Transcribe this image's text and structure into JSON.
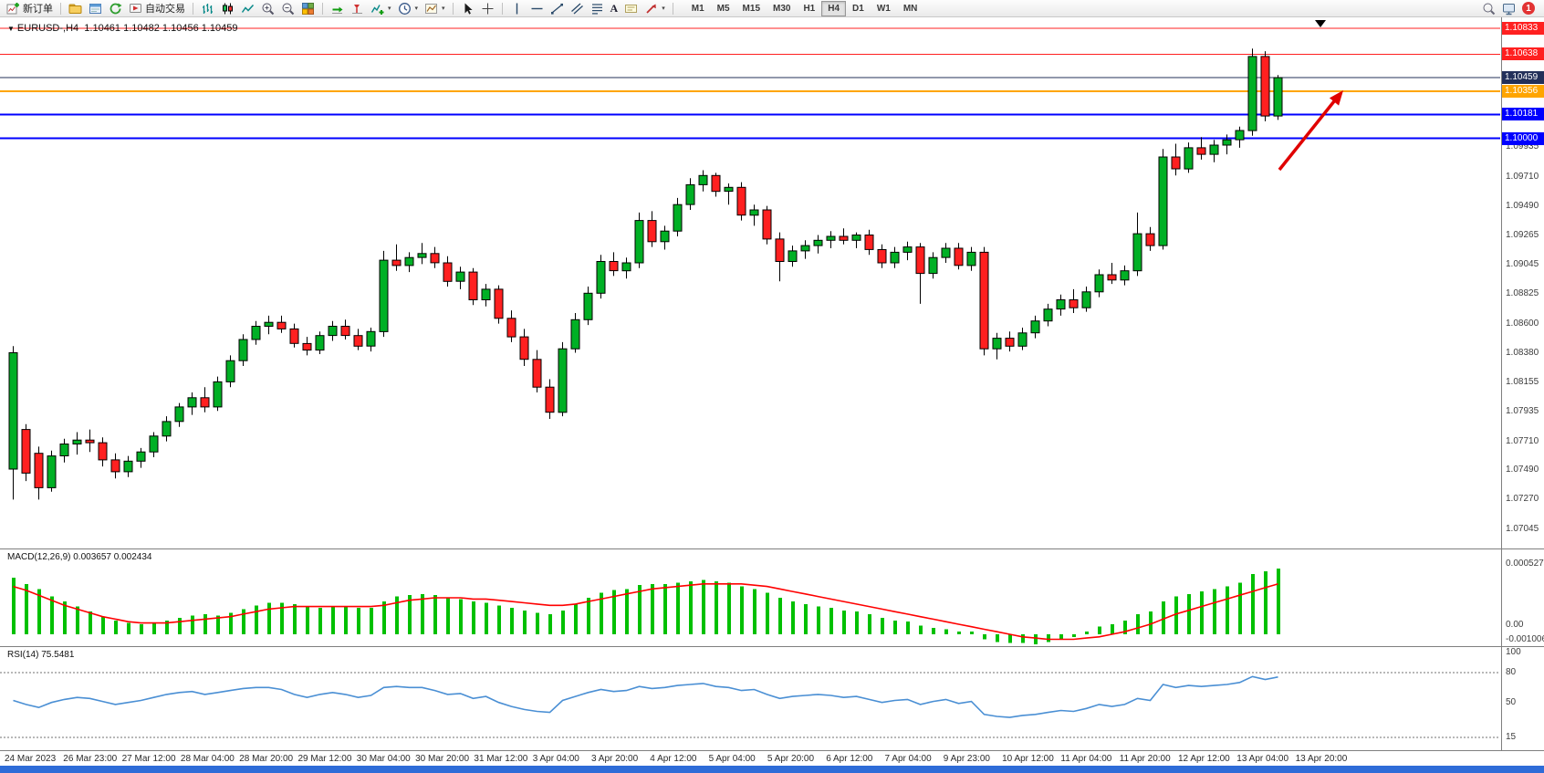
{
  "toolbar": {
    "new_order_label": "新订单",
    "autotrading_label": "自动交易",
    "text_tool_glyph": "A",
    "timeframes": [
      "M1",
      "M5",
      "M15",
      "M30",
      "H1",
      "H4",
      "D1",
      "W1",
      "MN"
    ],
    "active_timeframe": "H4",
    "notification_count": "1"
  },
  "chart_data": {
    "type": "candlestick",
    "symbol": "EURUSD-",
    "period": "H4",
    "title_display": "EURUSD-,H4",
    "ohlc_display": "1.10461 1.10482 1.10456 1.10459",
    "colors": {
      "bull": "#00B025",
      "bear": "#FF2020",
      "outline": "#000000",
      "background": "#FFFFFF",
      "macd_histogram": "#00C000",
      "macd_signal": "#FF0000",
      "rsi_line": "#4A8FD4",
      "axis_text": "#3C3C3C"
    },
    "y_axis_ticks": [
      "1.09935",
      "1.09710",
      "1.09490",
      "1.09265",
      "1.09045",
      "1.08825",
      "1.08600",
      "1.08380",
      "1.08155",
      "1.07935",
      "1.07710",
      "1.07490",
      "1.07270",
      "1.07045"
    ],
    "levels": [
      {
        "price": 1.10833,
        "label": "1.10833",
        "color": "#FF2020",
        "width": 1
      },
      {
        "price": 1.10638,
        "label": "1.10638",
        "color": "#FF2020",
        "width": 1
      },
      {
        "price": 1.10459,
        "label": "1.10459",
        "color": "#23305A",
        "width": 1,
        "current_price": true
      },
      {
        "price": 1.10356,
        "label": "1.10356",
        "color": "#FFA500",
        "width": 2
      },
      {
        "price": 1.10181,
        "label": "1.10181",
        "color": "#0000FF",
        "width": 2
      },
      {
        "price": 1.1,
        "label": "1.10000",
        "color": "#0000FF",
        "width": 2
      }
    ],
    "x_labels": [
      "24 Mar 2023",
      "26 Mar 23:00",
      "27 Mar 12:00",
      "28 Mar 04:00",
      "28 Mar 20:00",
      "29 Mar 12:00",
      "30 Mar 04:00",
      "30 Mar 20:00",
      "31 Mar 12:00",
      "3 Apr 04:00",
      "3 Apr 20:00",
      "4 Apr 12:00",
      "5 Apr 04:00",
      "5 Apr 20:00",
      "6 Apr 12:00",
      "7 Apr 04:00",
      "9 Apr 23:00",
      "10 Apr 12:00",
      "11 Apr 04:00",
      "11 Apr 20:00",
      "12 Apr 12:00",
      "13 Apr 04:00",
      "13 Apr 20:00"
    ],
    "candles": [
      [
        1.075,
        1.0843,
        1.0727,
        1.0838
      ],
      [
        1.078,
        1.0784,
        1.0741,
        1.0747
      ],
      [
        1.0762,
        1.0767,
        1.0727,
        1.0736
      ],
      [
        1.0736,
        1.0764,
        1.0733,
        1.076
      ],
      [
        1.076,
        1.0773,
        1.0755,
        1.0769
      ],
      [
        1.0769,
        1.0778,
        1.0761,
        1.0772
      ],
      [
        1.0772,
        1.078,
        1.0763,
        1.077
      ],
      [
        1.077,
        1.0774,
        1.0752,
        1.0757
      ],
      [
        1.0757,
        1.0762,
        1.0743,
        1.0748
      ],
      [
        1.0748,
        1.076,
        1.0744,
        1.0756
      ],
      [
        1.0756,
        1.0766,
        1.0751,
        1.0763
      ],
      [
        1.0763,
        1.0778,
        1.0759,
        1.0775
      ],
      [
        1.0775,
        1.079,
        1.0771,
        1.0786
      ],
      [
        1.0786,
        1.08,
        1.0782,
        1.0797
      ],
      [
        1.0797,
        1.0808,
        1.0791,
        1.0804
      ],
      [
        1.0804,
        1.0812,
        1.0793,
        1.0797
      ],
      [
        1.0797,
        1.082,
        1.0794,
        1.0816
      ],
      [
        1.0816,
        1.0836,
        1.0812,
        1.0832
      ],
      [
        1.0832,
        1.0852,
        1.0828,
        1.0848
      ],
      [
        1.0848,
        1.0862,
        1.0844,
        1.0858
      ],
      [
        1.0858,
        1.0866,
        1.0852,
        1.0861
      ],
      [
        1.0861,
        1.0866,
        1.0853,
        1.0856
      ],
      [
        1.0856,
        1.086,
        1.0842,
        1.0845
      ],
      [
        1.0845,
        1.085,
        1.0836,
        1.084
      ],
      [
        1.084,
        1.0854,
        1.0837,
        1.0851
      ],
      [
        1.0851,
        1.0862,
        1.0847,
        1.0858
      ],
      [
        1.0858,
        1.0863,
        1.0848,
        1.0851
      ],
      [
        1.0851,
        1.0856,
        1.084,
        1.0843
      ],
      [
        1.0843,
        1.0857,
        1.0839,
        1.0854
      ],
      [
        1.0854,
        1.0915,
        1.085,
        1.0908
      ],
      [
        1.0908,
        1.092,
        1.09,
        1.0904
      ],
      [
        1.0904,
        1.0914,
        1.0899,
        1.091
      ],
      [
        1.091,
        1.0921,
        1.0905,
        1.0913
      ],
      [
        1.0913,
        1.0918,
        1.0902,
        1.0906
      ],
      [
        1.0906,
        1.0911,
        1.0888,
        1.0892
      ],
      [
        1.0892,
        1.0903,
        1.0886,
        1.0899
      ],
      [
        1.0899,
        1.0902,
        1.0874,
        1.0878
      ],
      [
        1.0878,
        1.089,
        1.0873,
        1.0886
      ],
      [
        1.0886,
        1.0889,
        1.086,
        1.0864
      ],
      [
        1.0864,
        1.087,
        1.0846,
        1.085
      ],
      [
        1.085,
        1.0856,
        1.0828,
        1.0833
      ],
      [
        1.0833,
        1.084,
        1.0808,
        1.0812
      ],
      [
        1.0812,
        1.0818,
        1.0788,
        1.0793
      ],
      [
        1.0793,
        1.0846,
        1.079,
        1.0841
      ],
      [
        1.0841,
        1.0868,
        1.0838,
        1.0863
      ],
      [
        1.0863,
        1.0888,
        1.0859,
        1.0883
      ],
      [
        1.0883,
        1.0912,
        1.0879,
        1.0907
      ],
      [
        1.0907,
        1.0914,
        1.0896,
        1.09
      ],
      [
        1.09,
        1.091,
        1.0894,
        1.0906
      ],
      [
        1.0906,
        1.0944,
        1.0902,
        1.0938
      ],
      [
        1.0938,
        1.0945,
        1.0918,
        1.0922
      ],
      [
        1.0922,
        1.0934,
        1.0916,
        1.093
      ],
      [
        1.093,
        1.0955,
        1.0926,
        1.095
      ],
      [
        1.095,
        1.097,
        1.0946,
        1.0965
      ],
      [
        1.0965,
        1.0976,
        1.096,
        1.0972
      ],
      [
        1.0972,
        1.0974,
        1.0956,
        1.096
      ],
      [
        1.096,
        1.0966,
        1.095,
        1.0963
      ],
      [
        1.0963,
        1.0967,
        1.0938,
        1.0942
      ],
      [
        1.0942,
        1.095,
        1.0934,
        1.0946
      ],
      [
        1.0946,
        1.0949,
        1.092,
        1.0924
      ],
      [
        1.0924,
        1.0929,
        1.0892,
        1.0907
      ],
      [
        1.0907,
        1.0919,
        1.0903,
        1.0915
      ],
      [
        1.0915,
        1.0923,
        1.0909,
        1.0919
      ],
      [
        1.0919,
        1.0927,
        1.0913,
        1.0923
      ],
      [
        1.0923,
        1.093,
        1.0917,
        1.0926
      ],
      [
        1.0926,
        1.0932,
        1.092,
        1.0923
      ],
      [
        1.0923,
        1.0929,
        1.0917,
        1.0927
      ],
      [
        1.0927,
        1.0931,
        1.0912,
        1.0916
      ],
      [
        1.0916,
        1.092,
        1.0902,
        1.0906
      ],
      [
        1.0906,
        1.0918,
        1.0902,
        1.0914
      ],
      [
        1.0914,
        1.0922,
        1.0908,
        1.0918
      ],
      [
        1.0918,
        1.0921,
        1.0875,
        1.0898
      ],
      [
        1.0898,
        1.0914,
        1.0894,
        1.091
      ],
      [
        1.091,
        1.0921,
        1.0906,
        1.0917
      ],
      [
        1.0917,
        1.0921,
        1.0901,
        1.0904
      ],
      [
        1.0904,
        1.0918,
        1.09,
        1.0914
      ],
      [
        1.0914,
        1.0918,
        1.0836,
        1.0841
      ],
      [
        1.0841,
        1.0853,
        1.0833,
        1.0849
      ],
      [
        1.0849,
        1.0854,
        1.0839,
        1.0843
      ],
      [
        1.0843,
        1.0857,
        1.084,
        1.0853
      ],
      [
        1.0853,
        1.0866,
        1.0849,
        1.0862
      ],
      [
        1.0862,
        1.0875,
        1.0858,
        1.0871
      ],
      [
        1.0871,
        1.0882,
        1.0866,
        1.0878
      ],
      [
        1.0878,
        1.0886,
        1.0868,
        1.0872
      ],
      [
        1.0872,
        1.0888,
        1.0869,
        1.0884
      ],
      [
        1.0884,
        1.0901,
        1.088,
        1.0897
      ],
      [
        1.0897,
        1.0906,
        1.089,
        1.0893
      ],
      [
        1.0893,
        1.0904,
        1.0889,
        1.09
      ],
      [
        1.09,
        1.0944,
        1.0896,
        1.0928
      ],
      [
        1.0928,
        1.0933,
        1.0915,
        1.0919
      ],
      [
        1.0919,
        1.0992,
        1.0916,
        1.0986
      ],
      [
        1.0986,
        1.0996,
        1.0972,
        1.0977
      ],
      [
        1.0977,
        1.0997,
        1.0974,
        1.0993
      ],
      [
        1.0993,
        1.1001,
        1.0984,
        1.0988
      ],
      [
        1.0988,
        1.0999,
        1.0982,
        1.0995
      ],
      [
        1.0995,
        1.1003,
        1.0988,
        1.0999
      ],
      [
        1.0999,
        1.1009,
        1.0993,
        1.1006
      ],
      [
        1.1006,
        1.1068,
        1.1002,
        1.1062
      ],
      [
        1.1062,
        1.1066,
        1.1013,
        1.1017
      ],
      [
        1.1017,
        1.1048,
        1.1014,
        1.1046
      ]
    ],
    "indicators": {
      "macd": {
        "name": "MACD(12,26,9)",
        "display_values": "0.003657 0.002434",
        "scale_labels": [
          "0.0005274",
          "0.00",
          "-0.0010063"
        ],
        "histogram": [
          0.00045,
          0.0004,
          0.00036,
          0.0003,
          0.00026,
          0.00022,
          0.00018,
          0.00014,
          0.00011,
          9e-05,
          8e-05,
          9e-05,
          0.00011,
          0.00013,
          0.00015,
          0.00016,
          0.00015,
          0.00017,
          0.0002,
          0.00023,
          0.00025,
          0.00025,
          0.00024,
          0.00022,
          0.00021,
          0.00022,
          0.00022,
          0.00021,
          0.00021,
          0.00026,
          0.0003,
          0.00031,
          0.00032,
          0.00031,
          0.00029,
          0.00028,
          0.00026,
          0.00025,
          0.00023,
          0.00021,
          0.00019,
          0.00017,
          0.00016,
          0.00019,
          0.00024,
          0.00029,
          0.00033,
          0.00035,
          0.00036,
          0.00039,
          0.0004,
          0.0004,
          0.00041,
          0.00042,
          0.00043,
          0.00042,
          0.00041,
          0.00038,
          0.00036,
          0.00033,
          0.00029,
          0.00026,
          0.00024,
          0.00022,
          0.00021,
          0.00019,
          0.00018,
          0.00016,
          0.00013,
          0.00011,
          0.0001,
          7e-05,
          5e-05,
          4e-05,
          2e-05,
          2e-05,
          -4e-05,
          -6e-05,
          -7e-05,
          -7e-05,
          -8e-05,
          -6e-05,
          -4e-05,
          -2e-05,
          2e-05,
          6e-05,
          8e-05,
          0.00011,
          0.00016,
          0.00018,
          0.00026,
          0.0003,
          0.00032,
          0.00034,
          0.00036,
          0.00038,
          0.00041,
          0.00048,
          0.0005,
          0.00052
        ],
        "signal": [
          0.00038,
          0.00035,
          0.00031,
          0.00027,
          0.00023,
          0.0002,
          0.00017,
          0.00014,
          0.00012,
          0.0001,
          9e-05,
          9e-05,
          9e-05,
          0.0001,
          0.00011,
          0.00012,
          0.00013,
          0.00014,
          0.00016,
          0.00018,
          0.0002,
          0.00021,
          0.00022,
          0.00022,
          0.00022,
          0.00022,
          0.00022,
          0.00022,
          0.00022,
          0.00023,
          0.00025,
          0.00027,
          0.00028,
          0.00029,
          0.00029,
          0.00029,
          0.00028,
          0.00028,
          0.00027,
          0.00026,
          0.00025,
          0.00024,
          0.00023,
          0.00023,
          0.00024,
          0.00026,
          0.00028,
          0.0003,
          0.00032,
          0.00034,
          0.00036,
          0.00037,
          0.00038,
          0.00039,
          0.0004,
          0.0004,
          0.0004,
          0.0004,
          0.00039,
          0.00038,
          0.00036,
          0.00034,
          0.00032,
          0.0003,
          0.00028,
          0.00026,
          0.00024,
          0.00022,
          0.0002,
          0.00018,
          0.00016,
          0.00014,
          0.00012,
          0.0001,
          8e-05,
          6e-05,
          4e-05,
          2e-05,
          0.0,
          -2e-05,
          -3e-05,
          -4e-05,
          -4e-05,
          -4e-05,
          -3e-05,
          -2e-05,
          0.0,
          2e-05,
          5e-05,
          8e-05,
          0.00012,
          0.00016,
          0.00019,
          0.00022,
          0.00025,
          0.00028,
          0.00031,
          0.00034,
          0.00037,
          0.0004
        ]
      },
      "rsi": {
        "name": "RSI(14)",
        "display_value": "75.5481",
        "scale_labels": [
          "100",
          "80",
          "50",
          "15"
        ],
        "level_lines": [
          80,
          15
        ],
        "values": [
          52,
          48,
          45,
          50,
          53,
          55,
          54,
          51,
          48,
          50,
          52,
          55,
          58,
          60,
          61,
          58,
          60,
          62,
          64,
          65,
          65,
          63,
          58,
          55,
          58,
          60,
          58,
          55,
          57,
          65,
          66,
          65,
          65,
          62,
          58,
          59,
          54,
          56,
          50,
          46,
          43,
          41,
          40,
          52,
          56,
          60,
          63,
          61,
          62,
          66,
          64,
          65,
          67,
          68,
          69,
          66,
          65,
          62,
          63,
          58,
          54,
          56,
          57,
          58,
          57,
          55,
          56,
          53,
          50,
          52,
          53,
          48,
          51,
          53,
          49,
          51,
          38,
          36,
          35,
          37,
          38,
          40,
          42,
          41,
          44,
          48,
          46,
          48,
          54,
          52,
          68,
          65,
          67,
          66,
          67,
          68,
          70,
          76,
          73,
          75.5
        ]
      }
    },
    "annotations": [
      {
        "type": "arrow",
        "color": "#E00000",
        "direction": "up-right"
      }
    ]
  }
}
